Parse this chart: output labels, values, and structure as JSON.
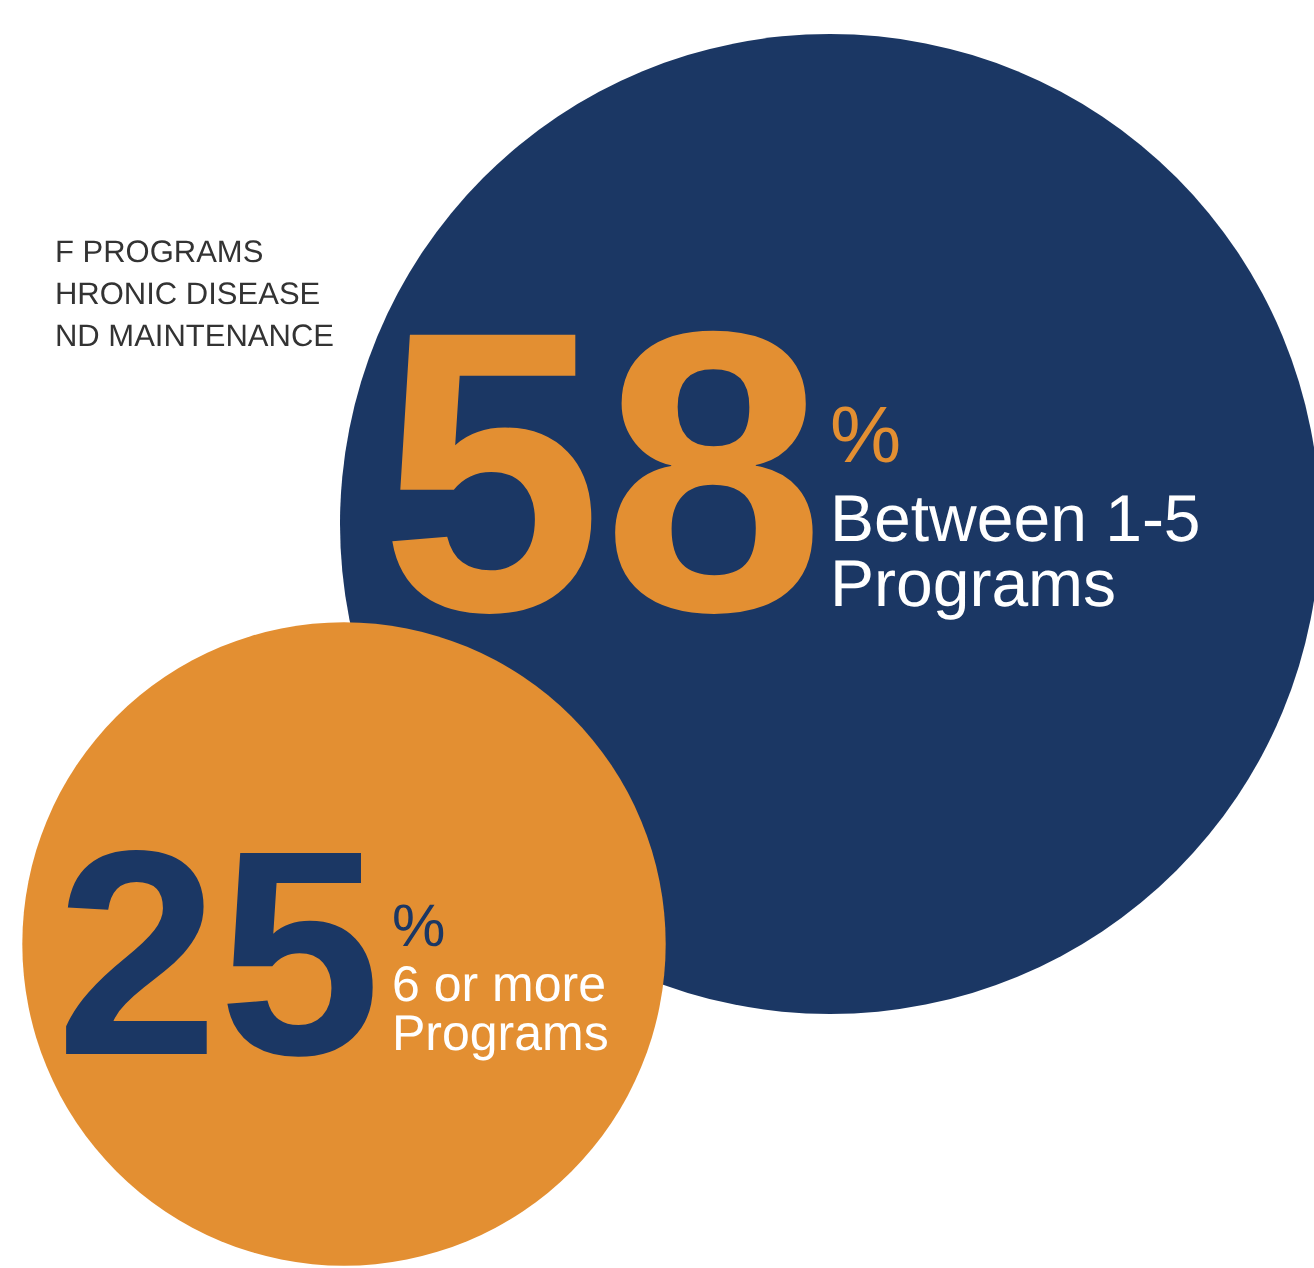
{
  "chart_data": {
    "type": "other",
    "title": "F PROGRAMS\nHRONIC DISEASE\nND MAINTENANCE",
    "categories": [
      "Between 1-5 Programs",
      "6 or more Programs"
    ],
    "values": [
      58,
      25
    ],
    "value_labels": [
      "58%",
      "25%"
    ],
    "colors": [
      "#1b3764",
      "#e38f32"
    ]
  }
}
